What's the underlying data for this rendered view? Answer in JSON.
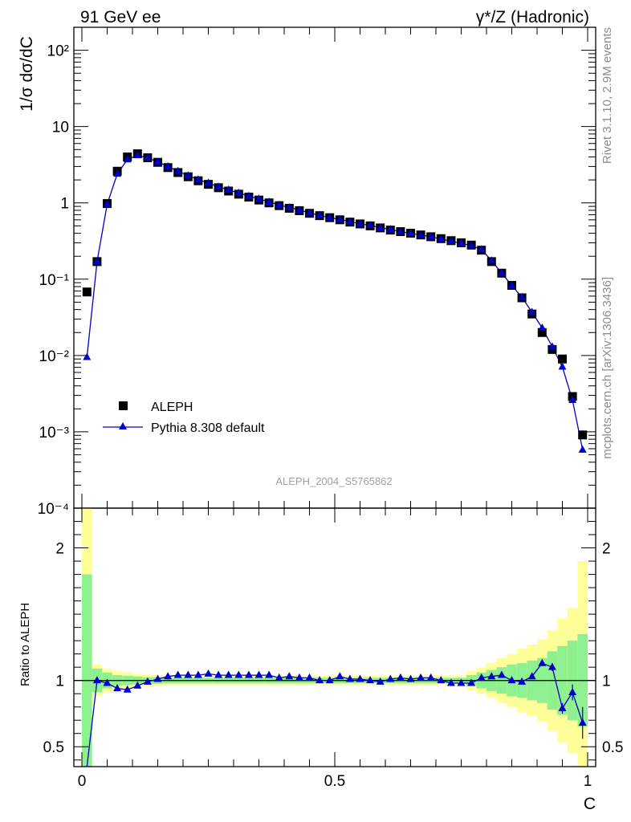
{
  "header": {
    "left": "91 GeV ee",
    "right": "γ*/Z (Hadronic)"
  },
  "side_text": {
    "rivet": "Rivet 3.1.10,  2.9M events",
    "mcplots": "mcplots.cern.ch [arXiv:1306.3436]"
  },
  "analysis_label": "ALEPH_2004_S5765862",
  "chart_data": [
    {
      "type": "scatter",
      "ylabel": "1/σ  dσ/dC",
      "yscale": "log",
      "xlim": [
        0,
        1
      ],
      "ylim": [
        0.0001,
        200
      ],
      "y_tick_labels": [
        "10⁻⁴",
        "10⁻³",
        "10⁻²",
        "10⁻¹",
        "1",
        "10",
        "10²"
      ],
      "legend_position": "lower-left",
      "x": [
        0.01,
        0.03,
        0.05,
        0.07,
        0.09,
        0.11,
        0.13,
        0.15,
        0.17,
        0.19,
        0.21,
        0.23,
        0.25,
        0.27,
        0.29,
        0.31,
        0.33,
        0.35,
        0.37,
        0.39,
        0.41,
        0.43,
        0.45,
        0.47,
        0.49,
        0.51,
        0.53,
        0.55,
        0.57,
        0.59,
        0.61,
        0.63,
        0.65,
        0.67,
        0.69,
        0.71,
        0.73,
        0.75,
        0.77,
        0.79,
        0.81,
        0.83,
        0.85,
        0.87,
        0.89,
        0.91,
        0.93,
        0.95,
        0.97,
        0.99
      ],
      "series": [
        {
          "name": "ALEPH",
          "marker": "square",
          "color": "#000000",
          "values": [
            0.068,
            0.17,
            0.98,
            2.6,
            4.0,
            4.4,
            3.9,
            3.4,
            2.9,
            2.5,
            2.2,
            1.95,
            1.75,
            1.58,
            1.43,
            1.3,
            1.19,
            1.09,
            1.0,
            0.92,
            0.85,
            0.79,
            0.73,
            0.68,
            0.64,
            0.6,
            0.56,
            0.53,
            0.5,
            0.47,
            0.44,
            0.42,
            0.4,
            0.38,
            0.36,
            0.34,
            0.32,
            0.3,
            0.28,
            0.24,
            0.17,
            0.12,
            0.083,
            0.057,
            0.035,
            0.02,
            0.012,
            0.009,
            0.0029,
            0.00091
          ]
        },
        {
          "name": "Pythia 8.308 default",
          "marker": "triangle",
          "color": "#0000cc",
          "values": [
            0.0095,
            0.17,
            0.96,
            2.4,
            3.7,
            4.2,
            3.9,
            3.45,
            3.0,
            2.6,
            2.28,
            2.02,
            1.82,
            1.63,
            1.48,
            1.35,
            1.23,
            1.13,
            1.03,
            0.94,
            0.87,
            0.81,
            0.74,
            0.69,
            0.64,
            0.61,
            0.57,
            0.53,
            0.51,
            0.47,
            0.45,
            0.42,
            0.4,
            0.38,
            0.36,
            0.335,
            0.315,
            0.295,
            0.275,
            0.245,
            0.175,
            0.12,
            0.083,
            0.058,
            0.037,
            0.023,
            0.013,
            0.0071,
            0.0026,
            0.00058
          ]
        }
      ]
    },
    {
      "type": "line",
      "xlabel": "C",
      "ylabel": "Ratio to ALEPH",
      "xlim": [
        0,
        1
      ],
      "ylim": [
        0.35,
        2.3
      ],
      "x_tick_labels": [
        "0",
        "0.5",
        "1"
      ],
      "y_tick_labels": [
        "0.5",
        "1",
        "2"
      ],
      "x": [
        0.01,
        0.03,
        0.05,
        0.07,
        0.09,
        0.11,
        0.13,
        0.15,
        0.17,
        0.19,
        0.21,
        0.23,
        0.25,
        0.27,
        0.29,
        0.31,
        0.33,
        0.35,
        0.37,
        0.39,
        0.41,
        0.43,
        0.45,
        0.47,
        0.49,
        0.51,
        0.53,
        0.55,
        0.57,
        0.59,
        0.61,
        0.63,
        0.65,
        0.67,
        0.69,
        0.71,
        0.73,
        0.75,
        0.77,
        0.79,
        0.81,
        0.83,
        0.85,
        0.87,
        0.89,
        0.91,
        0.93,
        0.95,
        0.97,
        0.99
      ],
      "reference": 1,
      "bands": {
        "inner_color": "#8ef08e",
        "outer_color": "#ffff99",
        "inner_half_width": [
          0.8,
          0.09,
          0.06,
          0.04,
          0.035,
          0.03,
          0.025,
          0.025,
          0.02,
          0.02,
          0.02,
          0.02,
          0.02,
          0.02,
          0.02,
          0.02,
          0.02,
          0.02,
          0.02,
          0.02,
          0.02,
          0.02,
          0.02,
          0.02,
          0.02,
          0.02,
          0.02,
          0.02,
          0.02,
          0.02,
          0.02,
          0.02,
          0.02,
          0.02,
          0.02,
          0.02,
          0.02,
          0.02,
          0.04,
          0.06,
          0.08,
          0.1,
          0.12,
          0.13,
          0.15,
          0.17,
          0.22,
          0.26,
          0.3,
          0.35
        ],
        "outer_half_width": [
          1.3,
          0.12,
          0.09,
          0.07,
          0.06,
          0.05,
          0.045,
          0.04,
          0.035,
          0.035,
          0.035,
          0.035,
          0.035,
          0.035,
          0.035,
          0.035,
          0.035,
          0.035,
          0.035,
          0.035,
          0.035,
          0.035,
          0.035,
          0.035,
          0.035,
          0.035,
          0.035,
          0.035,
          0.035,
          0.035,
          0.035,
          0.035,
          0.035,
          0.035,
          0.035,
          0.035,
          0.035,
          0.035,
          0.07,
          0.1,
          0.13,
          0.17,
          0.2,
          0.24,
          0.27,
          0.31,
          0.38,
          0.47,
          0.55,
          0.9
        ]
      },
      "series": [
        {
          "name": "Pythia 8.308 default",
          "color": "#0000cc",
          "values": [
            0.14,
            1.0,
            0.98,
            0.94,
            0.93,
            0.96,
            0.99,
            1.01,
            1.03,
            1.04,
            1.04,
            1.04,
            1.05,
            1.04,
            1.04,
            1.04,
            1.04,
            1.04,
            1.04,
            1.02,
            1.03,
            1.02,
            1.02,
            1.0,
            1.0,
            1.03,
            1.01,
            1.01,
            1.0,
            0.99,
            1.01,
            1.02,
            1.01,
            1.02,
            1.02,
            1.0,
            0.98,
            0.98,
            0.98,
            1.02,
            1.03,
            1.04,
            1.0,
            0.99,
            1.03,
            1.13,
            1.1,
            0.79,
            0.91,
            0.68
          ],
          "errors": [
            0,
            0,
            0,
            0,
            0,
            0,
            0,
            0,
            0,
            0,
            0,
            0,
            0,
            0,
            0,
            0,
            0,
            0,
            0,
            0,
            0,
            0,
            0,
            0,
            0,
            0,
            0,
            0,
            0,
            0,
            0,
            0,
            0,
            0,
            0,
            0,
            0,
            0,
            0,
            0,
            0,
            0,
            0,
            0,
            0,
            0.02,
            0.03,
            0.04,
            0.06,
            0.12
          ]
        }
      ]
    }
  ]
}
